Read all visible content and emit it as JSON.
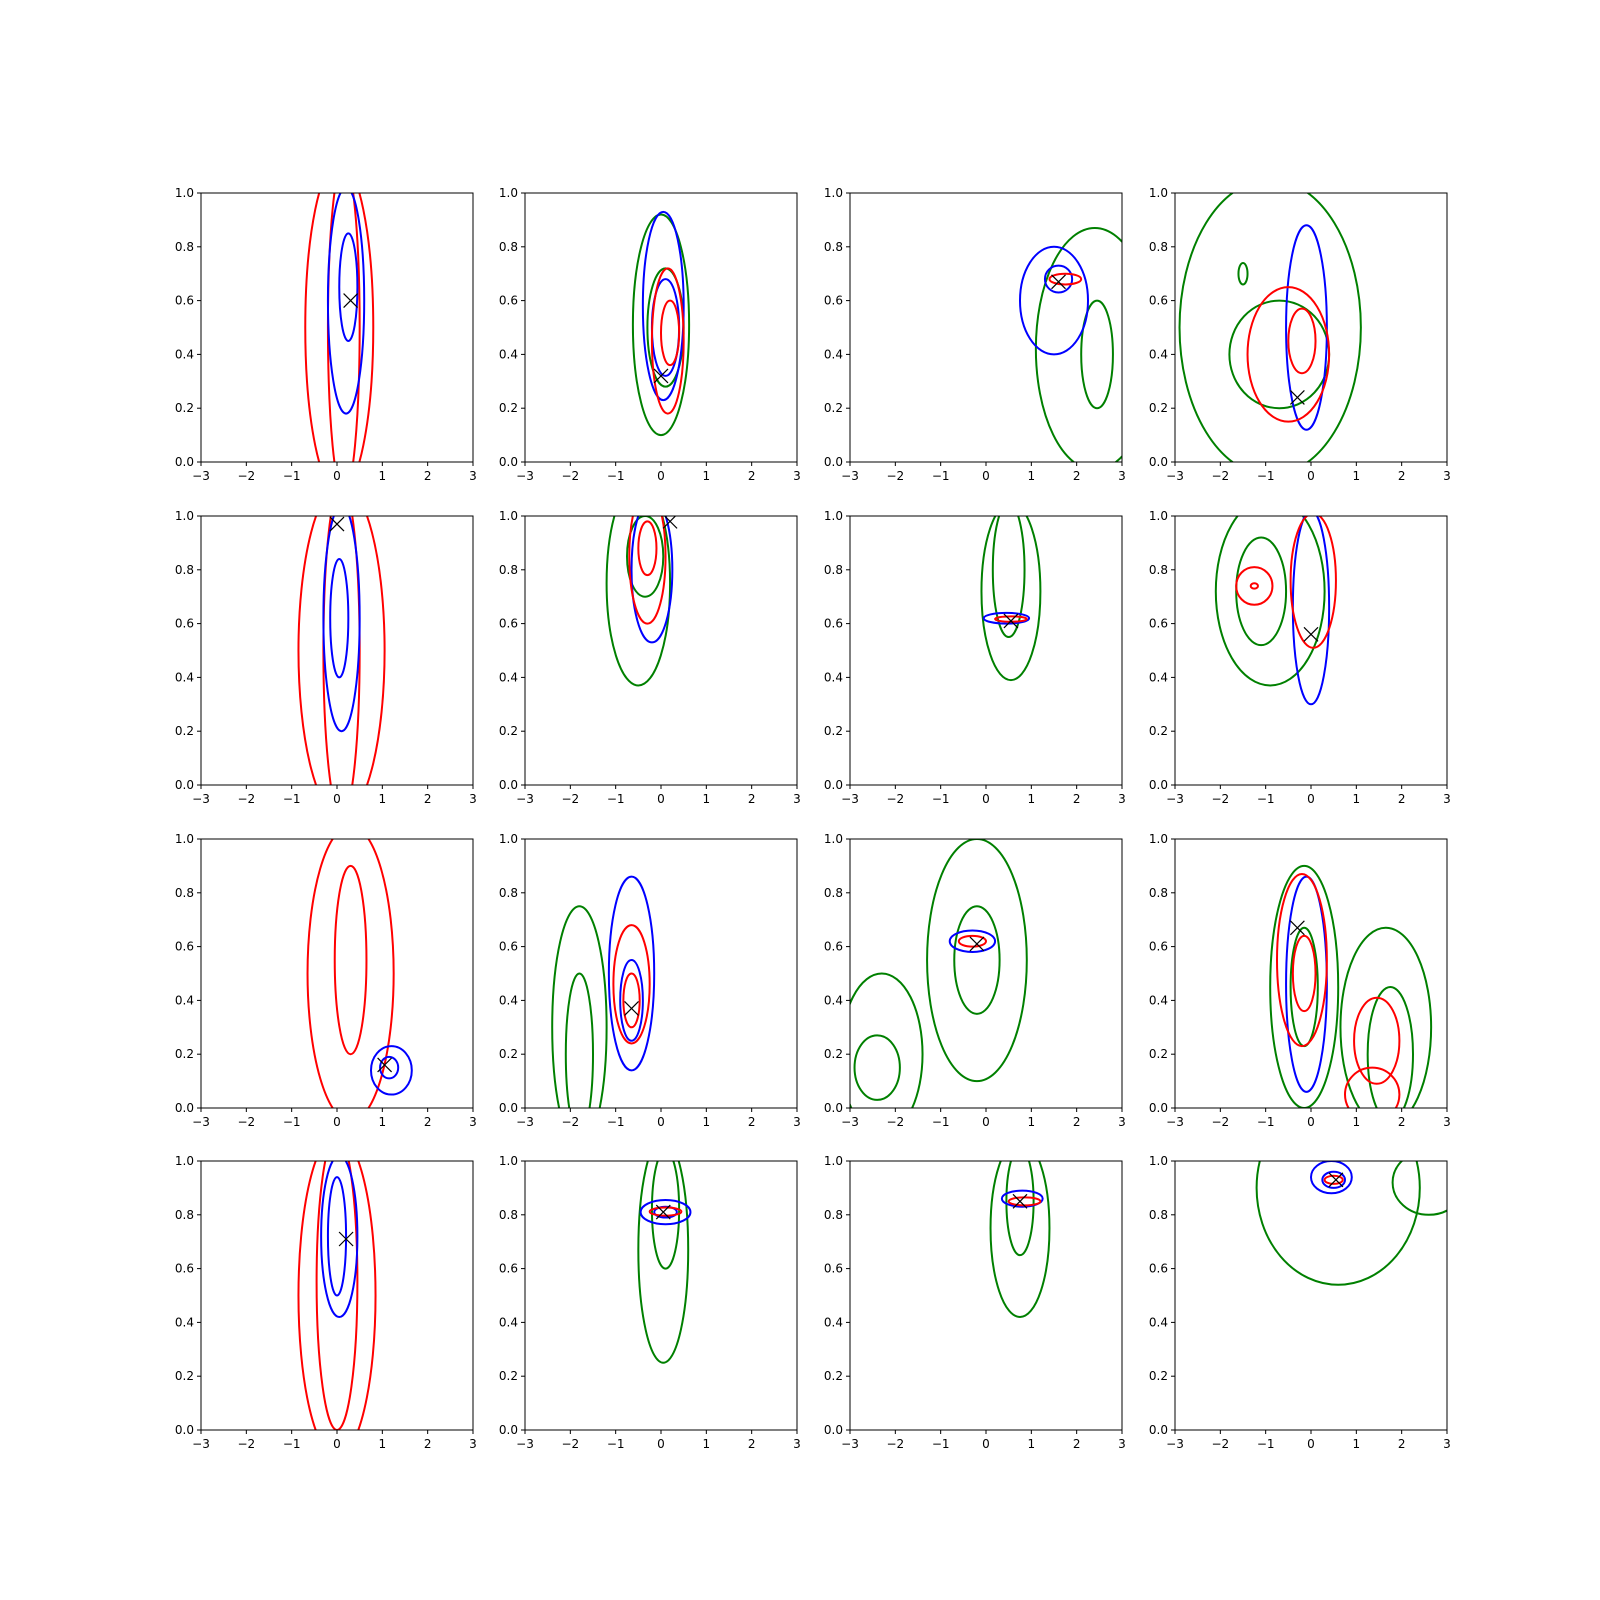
{
  "chart_data": {
    "type": "contour-grid",
    "layout": {
      "rows": 4,
      "cols": 4
    },
    "xlim": [
      -3,
      3
    ],
    "ylim": [
      0,
      1
    ],
    "xticks": [
      -3,
      -2,
      -1,
      0,
      1,
      2,
      3
    ],
    "yticks": [
      0.0,
      0.2,
      0.4,
      0.6,
      0.8,
      1.0
    ],
    "xtick_labels": [
      "−3",
      "−2",
      "−1",
      "0",
      "1",
      "2",
      "3"
    ],
    "ytick_labels": [
      "0.0",
      "0.2",
      "0.4",
      "0.6",
      "0.8",
      "1.0"
    ],
    "colors": {
      "green": "#008000",
      "red": "#ff0000",
      "blue": "#0000ff",
      "marker": "#000000"
    },
    "grid": false,
    "panels": [
      {
        "marker": [
          0.3,
          0.6
        ],
        "contours": [
          {
            "c": "red",
            "cx": 0.05,
            "cy": 0.5,
            "rx": 0.75,
            "ry": 0.62
          },
          {
            "c": "red",
            "cx": 0.15,
            "cy": 0.5,
            "rx": 0.35,
            "ry": 0.62
          },
          {
            "c": "blue",
            "cx": 0.2,
            "cy": 0.6,
            "rx": 0.4,
            "ry": 0.42
          },
          {
            "c": "blue",
            "cx": 0.25,
            "cy": 0.65,
            "rx": 0.2,
            "ry": 0.2
          }
        ]
      },
      {
        "marker": [
          0.0,
          0.32
        ],
        "contours": [
          {
            "c": "green",
            "cx": 0.0,
            "cy": 0.51,
            "rx": 0.62,
            "ry": 0.41
          },
          {
            "c": "green",
            "cx": 0.1,
            "cy": 0.5,
            "rx": 0.4,
            "ry": 0.22
          },
          {
            "c": "blue",
            "cx": 0.05,
            "cy": 0.58,
            "rx": 0.45,
            "ry": 0.35
          },
          {
            "c": "blue",
            "cx": 0.1,
            "cy": 0.5,
            "rx": 0.3,
            "ry": 0.18
          },
          {
            "c": "red",
            "cx": 0.15,
            "cy": 0.45,
            "rx": 0.35,
            "ry": 0.27
          },
          {
            "c": "red",
            "cx": 0.2,
            "cy": 0.48,
            "rx": 0.2,
            "ry": 0.12
          }
        ]
      },
      {
        "marker": [
          1.6,
          0.67
        ],
        "contours": [
          {
            "c": "green",
            "cx": 2.4,
            "cy": 0.42,
            "rx": 1.3,
            "ry": 0.45
          },
          {
            "c": "green",
            "cx": 2.45,
            "cy": 0.4,
            "rx": 0.35,
            "ry": 0.2
          },
          {
            "c": "blue",
            "cx": 1.5,
            "cy": 0.6,
            "rx": 0.75,
            "ry": 0.2
          },
          {
            "c": "blue",
            "cx": 1.6,
            "cy": 0.68,
            "rx": 0.3,
            "ry": 0.05
          },
          {
            "c": "red",
            "cx": 1.75,
            "cy": 0.68,
            "rx": 0.35,
            "ry": 0.02
          }
        ]
      },
      {
        "marker": [
          -0.3,
          0.24
        ],
        "contours": [
          {
            "c": "green",
            "cx": -0.9,
            "cy": 0.5,
            "rx": 2.0,
            "ry": 0.55
          },
          {
            "c": "green",
            "cx": -0.7,
            "cy": 0.4,
            "rx": 1.1,
            "ry": 0.2
          },
          {
            "c": "green",
            "cx": -1.5,
            "cy": 0.7,
            "rx": 0.1,
            "ry": 0.04
          },
          {
            "c": "blue",
            "cx": -0.1,
            "cy": 0.5,
            "rx": 0.45,
            "ry": 0.38
          },
          {
            "c": "red",
            "cx": -0.5,
            "cy": 0.4,
            "rx": 0.9,
            "ry": 0.25
          },
          {
            "c": "red",
            "cx": -0.2,
            "cy": 0.45,
            "rx": 0.3,
            "ry": 0.12
          }
        ]
      },
      {
        "marker": [
          0.0,
          0.97
        ],
        "contours": [
          {
            "c": "red",
            "cx": 0.1,
            "cy": 0.5,
            "rx": 0.95,
            "ry": 0.62
          },
          {
            "c": "red",
            "cx": 0.1,
            "cy": 0.5,
            "rx": 0.4,
            "ry": 0.62
          },
          {
            "c": "blue",
            "cx": 0.1,
            "cy": 0.62,
            "rx": 0.4,
            "ry": 0.42
          },
          {
            "c": "blue",
            "cx": 0.05,
            "cy": 0.62,
            "rx": 0.2,
            "ry": 0.22
          }
        ]
      },
      {
        "marker": [
          0.2,
          0.98
        ],
        "contours": [
          {
            "c": "green",
            "cx": -0.5,
            "cy": 0.75,
            "rx": 0.7,
            "ry": 0.38
          },
          {
            "c": "green",
            "cx": -0.35,
            "cy": 0.85,
            "rx": 0.4,
            "ry": 0.15
          },
          {
            "c": "blue",
            "cx": -0.2,
            "cy": 0.8,
            "rx": 0.45,
            "ry": 0.27
          },
          {
            "c": "red",
            "cx": -0.3,
            "cy": 0.85,
            "rx": 0.4,
            "ry": 0.25
          },
          {
            "c": "red",
            "cx": -0.3,
            "cy": 0.88,
            "rx": 0.2,
            "ry": 0.1
          }
        ]
      },
      {
        "marker": [
          0.55,
          0.61
        ],
        "contours": [
          {
            "c": "green",
            "cx": 0.55,
            "cy": 0.72,
            "rx": 0.65,
            "ry": 0.33
          },
          {
            "c": "green",
            "cx": 0.5,
            "cy": 0.8,
            "rx": 0.35,
            "ry": 0.25
          },
          {
            "c": "blue",
            "cx": 0.45,
            "cy": 0.62,
            "rx": 0.5,
            "ry": 0.02
          },
          {
            "c": "red",
            "cx": 0.55,
            "cy": 0.617,
            "rx": 0.35,
            "ry": 0.01
          }
        ]
      },
      {
        "marker": [
          0.0,
          0.56
        ],
        "contours": [
          {
            "c": "green",
            "cx": -0.9,
            "cy": 0.72,
            "rx": 1.2,
            "ry": 0.35
          },
          {
            "c": "green",
            "cx": -1.1,
            "cy": 0.72,
            "rx": 0.55,
            "ry": 0.2
          },
          {
            "c": "blue",
            "cx": 0.0,
            "cy": 0.66,
            "rx": 0.4,
            "ry": 0.36
          },
          {
            "c": "red",
            "cx": 0.05,
            "cy": 0.76,
            "rx": 0.5,
            "ry": 0.25
          },
          {
            "c": "red",
            "cx": -1.25,
            "cy": 0.74,
            "rx": 0.4,
            "ry": 0.07
          },
          {
            "c": "red",
            "cx": -1.25,
            "cy": 0.74,
            "rx": 0.08,
            "ry": 0.01
          }
        ]
      },
      {
        "marker": [
          1.05,
          0.16
        ],
        "contours": [
          {
            "c": "red",
            "cx": 0.3,
            "cy": 0.5,
            "rx": 0.95,
            "ry": 0.55
          },
          {
            "c": "red",
            "cx": 0.3,
            "cy": 0.55,
            "rx": 0.35,
            "ry": 0.35
          },
          {
            "c": "blue",
            "cx": 1.2,
            "cy": 0.14,
            "rx": 0.45,
            "ry": 0.09
          },
          {
            "c": "blue",
            "cx": 1.15,
            "cy": 0.15,
            "rx": 0.2,
            "ry": 0.04
          }
        ]
      },
      {
        "marker": [
          -0.65,
          0.37
        ],
        "contours": [
          {
            "c": "green",
            "cx": -1.8,
            "cy": 0.3,
            "rx": 0.6,
            "ry": 0.45
          },
          {
            "c": "green",
            "cx": -1.8,
            "cy": 0.2,
            "rx": 0.3,
            "ry": 0.3
          },
          {
            "c": "blue",
            "cx": -0.65,
            "cy": 0.5,
            "rx": 0.5,
            "ry": 0.36
          },
          {
            "c": "blue",
            "cx": -0.65,
            "cy": 0.4,
            "rx": 0.25,
            "ry": 0.15
          },
          {
            "c": "red",
            "cx": -0.65,
            "cy": 0.46,
            "rx": 0.4,
            "ry": 0.22
          },
          {
            "c": "red",
            "cx": -0.65,
            "cy": 0.4,
            "rx": 0.18,
            "ry": 0.1
          }
        ]
      },
      {
        "marker": [
          -0.2,
          0.61
        ],
        "contours": [
          {
            "c": "green",
            "cx": -0.2,
            "cy": 0.55,
            "rx": 1.1,
            "ry": 0.45
          },
          {
            "c": "green",
            "cx": -0.2,
            "cy": 0.55,
            "rx": 0.5,
            "ry": 0.2
          },
          {
            "c": "green",
            "cx": -2.3,
            "cy": 0.2,
            "rx": 0.9,
            "ry": 0.3
          },
          {
            "c": "green",
            "cx": -2.4,
            "cy": 0.15,
            "rx": 0.5,
            "ry": 0.12
          },
          {
            "c": "blue",
            "cx": -0.3,
            "cy": 0.62,
            "rx": 0.5,
            "ry": 0.04
          },
          {
            "c": "red",
            "cx": -0.3,
            "cy": 0.62,
            "rx": 0.3,
            "ry": 0.02
          }
        ]
      },
      {
        "marker": [
          -0.3,
          0.67
        ],
        "contours": [
          {
            "c": "green",
            "cx": -0.15,
            "cy": 0.45,
            "rx": 0.75,
            "ry": 0.45
          },
          {
            "c": "green",
            "cx": -0.15,
            "cy": 0.45,
            "rx": 0.3,
            "ry": 0.22
          },
          {
            "c": "green",
            "cx": 1.65,
            "cy": 0.3,
            "rx": 1.0,
            "ry": 0.37
          },
          {
            "c": "green",
            "cx": 1.75,
            "cy": 0.2,
            "rx": 0.5,
            "ry": 0.25
          },
          {
            "c": "blue",
            "cx": -0.1,
            "cy": 0.46,
            "rx": 0.45,
            "ry": 0.4
          },
          {
            "c": "red",
            "cx": -0.2,
            "cy": 0.55,
            "rx": 0.55,
            "ry": 0.32
          },
          {
            "c": "red",
            "cx": -0.15,
            "cy": 0.5,
            "rx": 0.25,
            "ry": 0.14
          },
          {
            "c": "red",
            "cx": 1.45,
            "cy": 0.25,
            "rx": 0.5,
            "ry": 0.16
          },
          {
            "c": "red",
            "cx": 1.35,
            "cy": 0.05,
            "rx": 0.6,
            "ry": 0.1
          }
        ]
      },
      {
        "marker": [
          0.2,
          0.71
        ],
        "contours": [
          {
            "c": "red",
            "cx": 0.0,
            "cy": 0.5,
            "rx": 0.85,
            "ry": 0.6
          },
          {
            "c": "red",
            "cx": 0.0,
            "cy": 0.55,
            "rx": 0.45,
            "ry": 0.55
          },
          {
            "c": "blue",
            "cx": 0.05,
            "cy": 0.72,
            "rx": 0.4,
            "ry": 0.3
          },
          {
            "c": "blue",
            "cx": 0.0,
            "cy": 0.72,
            "rx": 0.2,
            "ry": 0.22
          }
        ]
      },
      {
        "marker": [
          0.05,
          0.81
        ],
        "contours": [
          {
            "c": "green",
            "cx": 0.05,
            "cy": 0.67,
            "rx": 0.55,
            "ry": 0.42
          },
          {
            "c": "green",
            "cx": 0.1,
            "cy": 0.82,
            "rx": 0.3,
            "ry": 0.22
          },
          {
            "c": "blue",
            "cx": 0.1,
            "cy": 0.81,
            "rx": 0.55,
            "ry": 0.045
          },
          {
            "c": "blue",
            "cx": 0.1,
            "cy": 0.81,
            "rx": 0.25,
            "ry": 0.02
          },
          {
            "c": "red",
            "cx": 0.1,
            "cy": 0.812,
            "rx": 0.35,
            "ry": 0.015
          }
        ]
      },
      {
        "marker": [
          0.75,
          0.85
        ],
        "contours": [
          {
            "c": "green",
            "cx": 0.75,
            "cy": 0.75,
            "rx": 0.65,
            "ry": 0.33
          },
          {
            "c": "green",
            "cx": 0.75,
            "cy": 0.85,
            "rx": 0.3,
            "ry": 0.2
          },
          {
            "c": "blue",
            "cx": 0.8,
            "cy": 0.86,
            "rx": 0.45,
            "ry": 0.03
          },
          {
            "c": "red",
            "cx": 0.85,
            "cy": 0.85,
            "rx": 0.35,
            "ry": 0.015
          }
        ]
      },
      {
        "marker": [
          0.55,
          0.93
        ],
        "contours": [
          {
            "c": "green",
            "cx": 0.6,
            "cy": 0.9,
            "rx": 1.8,
            "ry": 0.36
          },
          {
            "c": "green",
            "cx": 2.6,
            "cy": 0.92,
            "rx": 0.8,
            "ry": 0.12
          },
          {
            "c": "blue",
            "cx": 0.45,
            "cy": 0.94,
            "rx": 0.45,
            "ry": 0.06
          },
          {
            "c": "blue",
            "cx": 0.5,
            "cy": 0.93,
            "rx": 0.25,
            "ry": 0.03
          },
          {
            "c": "red",
            "cx": 0.5,
            "cy": 0.93,
            "rx": 0.2,
            "ry": 0.015
          }
        ]
      }
    ]
  }
}
